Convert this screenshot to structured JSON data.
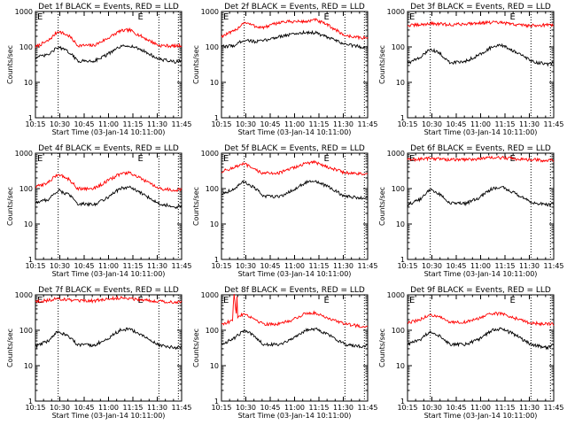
{
  "chart_data": [
    {
      "type": "line",
      "title": "Det 1f BLACK = Events, RED = LLD",
      "xlabel": "Start Time (03-Jan-14 10:11:00)",
      "ylabel": "Counts/sec",
      "x_ticks": [
        "10:15",
        "10:30",
        "10:45",
        "11:00",
        "11:15",
        "11:30",
        "11:45"
      ],
      "y_ticks": [
        "1",
        "10",
        "100",
        "1000"
      ],
      "yscale": "log",
      "ylim": [
        1,
        1000
      ],
      "xlim_min": [
        4,
        94
      ],
      "markers": [
        {
          "label": "E",
          "x_min": 67
        }
      ],
      "series": [
        {
          "color": "#ff0000",
          "x_min": [
            4,
            12,
            18,
            25,
            30,
            40,
            48,
            56,
            62,
            70,
            80,
            90,
            94
          ],
          "values": [
            100,
            150,
            280,
            200,
            110,
            110,
            170,
            280,
            300,
            190,
            110,
            105,
            110
          ]
        },
        {
          "color": "#000000",
          "x_min": [
            4,
            12,
            18,
            25,
            30,
            40,
            48,
            56,
            62,
            70,
            80,
            90,
            94
          ],
          "values": [
            50,
            60,
            100,
            70,
            40,
            40,
            60,
            100,
            110,
            80,
            45,
            38,
            40
          ]
        }
      ]
    },
    {
      "type": "line",
      "title": "Det 2f BLACK = Events, RED = LLD",
      "xlabel": "Start Time (03-Jan-14 10:11:00)",
      "ylabel": "Counts/sec",
      "x_ticks": [
        "10:15",
        "10:30",
        "10:45",
        "11:00",
        "11:15",
        "11:30",
        "11:45"
      ],
      "y_ticks": [
        "1",
        "10",
        "100",
        "1000"
      ],
      "yscale": "log",
      "ylim": [
        1,
        1000
      ],
      "xlim_min": [
        4,
        94
      ],
      "markers": [
        {
          "label": "E",
          "x_min": 67
        }
      ],
      "series": [
        {
          "color": "#ff0000",
          "x_min": [
            4,
            12,
            18,
            25,
            30,
            40,
            48,
            56,
            62,
            70,
            80,
            90,
            94
          ],
          "values": [
            200,
            280,
            500,
            380,
            350,
            500,
            520,
            520,
            580,
            400,
            210,
            180,
            180
          ]
        },
        {
          "color": "#000000",
          "x_min": [
            4,
            12,
            18,
            25,
            30,
            40,
            48,
            56,
            62,
            70,
            80,
            90,
            94
          ],
          "values": [
            100,
            110,
            160,
            140,
            150,
            200,
            230,
            260,
            250,
            180,
            120,
            100,
            100
          ]
        }
      ]
    },
    {
      "type": "line",
      "title": "Det 3f BLACK = Events, RED = LLD",
      "xlabel": "Start Time (03-Jan-14 10:11:00)",
      "ylabel": "Counts/sec",
      "x_ticks": [
        "10:15",
        "10:30",
        "10:45",
        "11:00",
        "11:15",
        "11:30",
        "11:45"
      ],
      "y_ticks": [
        "1",
        "10",
        "100",
        "1000"
      ],
      "yscale": "log",
      "ylim": [
        1,
        1000
      ],
      "xlim_min": [
        4,
        94
      ],
      "markers": [
        {
          "label": "E",
          "x_min": 67
        }
      ],
      "series": [
        {
          "color": "#ff0000",
          "x_min": [
            4,
            12,
            18,
            25,
            30,
            40,
            48,
            56,
            62,
            70,
            80,
            90,
            94
          ],
          "values": [
            400,
            420,
            460,
            440,
            420,
            450,
            480,
            490,
            480,
            430,
            400,
            420,
            410
          ]
        },
        {
          "color": "#000000",
          "x_min": [
            4,
            12,
            18,
            25,
            30,
            40,
            48,
            56,
            62,
            70,
            80,
            90,
            94
          ],
          "values": [
            35,
            50,
            90,
            60,
            35,
            40,
            60,
            100,
            110,
            75,
            40,
            32,
            35
          ]
        }
      ]
    },
    {
      "type": "line",
      "title": "Det 4f BLACK = Events, RED = LLD",
      "xlabel": "Start Time (03-Jan-14 10:11:00)",
      "ylabel": "Counts/sec",
      "x_ticks": [
        "10:15",
        "10:30",
        "10:45",
        "11:00",
        "11:15",
        "11:30",
        "11:45"
      ],
      "y_ticks": [
        "1",
        "10",
        "100",
        "1000"
      ],
      "yscale": "log",
      "ylim": [
        1,
        1000
      ],
      "xlim_min": [
        4,
        94
      ],
      "markers": [
        {
          "label": "E",
          "x_min": 67
        }
      ],
      "series": [
        {
          "color": "#ff0000",
          "x_min": [
            4,
            12,
            18,
            25,
            30,
            40,
            48,
            56,
            62,
            70,
            80,
            90,
            94
          ],
          "values": [
            110,
            150,
            260,
            180,
            100,
            100,
            160,
            260,
            280,
            180,
            100,
            90,
            95
          ]
        },
        {
          "color": "#000000",
          "x_min": [
            4,
            12,
            18,
            25,
            30,
            40,
            48,
            56,
            62,
            70,
            80,
            90,
            94
          ],
          "values": [
            40,
            50,
            90,
            65,
            38,
            35,
            55,
            100,
            110,
            70,
            38,
            30,
            32
          ]
        }
      ]
    },
    {
      "type": "line",
      "title": "Det 5f BLACK = Events, RED = LLD",
      "xlabel": "Start Time (03-Jan-14 10:11:00)",
      "ylabel": "Counts/sec",
      "x_ticks": [
        "10:15",
        "10:30",
        "10:45",
        "11:00",
        "11:15",
        "11:30",
        "11:45"
      ],
      "y_ticks": [
        "1",
        "10",
        "100",
        "1000"
      ],
      "yscale": "log",
      "ylim": [
        1,
        1000
      ],
      "xlim_min": [
        4,
        94
      ],
      "markers": [
        {
          "label": "E",
          "x_min": 67
        }
      ],
      "series": [
        {
          "color": "#ff0000",
          "x_min": [
            4,
            12,
            18,
            25,
            30,
            40,
            48,
            56,
            62,
            70,
            80,
            90,
            94
          ],
          "values": [
            300,
            400,
            500,
            330,
            270,
            280,
            380,
            520,
            550,
            400,
            280,
            260,
            270
          ]
        },
        {
          "color": "#000000",
          "x_min": [
            4,
            12,
            18,
            25,
            30,
            40,
            48,
            56,
            62,
            70,
            80,
            90,
            94
          ],
          "values": [
            70,
            100,
            160,
            100,
            60,
            60,
            90,
            150,
            160,
            110,
            60,
            55,
            55
          ]
        }
      ]
    },
    {
      "type": "line",
      "title": "Det 6f BLACK = Events, RED = LLD",
      "xlabel": "Start Time (03-Jan-14 10:11:00)",
      "ylabel": "Counts/sec",
      "x_ticks": [
        "10:15",
        "10:30",
        "10:45",
        "11:00",
        "11:15",
        "11:30",
        "11:45"
      ],
      "y_ticks": [
        "1",
        "10",
        "100",
        "1000"
      ],
      "yscale": "log",
      "ylim": [
        1,
        1000
      ],
      "xlim_min": [
        4,
        94
      ],
      "markers": [
        {
          "label": "E",
          "x_min": 67
        }
      ],
      "series": [
        {
          "color": "#ff0000",
          "x_min": [
            4,
            12,
            18,
            25,
            30,
            40,
            48,
            56,
            62,
            70,
            80,
            90,
            94
          ],
          "values": [
            650,
            680,
            720,
            680,
            650,
            660,
            700,
            740,
            740,
            700,
            650,
            620,
            620
          ]
        },
        {
          "color": "#000000",
          "x_min": [
            4,
            12,
            18,
            25,
            30,
            40,
            48,
            56,
            62,
            70,
            80,
            90,
            94
          ],
          "values": [
            35,
            50,
            95,
            65,
            38,
            38,
            55,
            100,
            110,
            75,
            40,
            35,
            36
          ]
        }
      ]
    },
    {
      "type": "line",
      "title": "Det 7f BLACK = Events, RED = LLD",
      "xlabel": "Start Time (03-Jan-14 10:11:00)",
      "ylabel": "Counts/sec",
      "x_ticks": [
        "10:15",
        "10:30",
        "10:45",
        "11:00",
        "11:15",
        "11:30",
        "11:45"
      ],
      "y_ticks": [
        "1",
        "10",
        "100",
        "1000"
      ],
      "yscale": "log",
      "ylim": [
        1,
        1000
      ],
      "xlim_min": [
        4,
        94
      ],
      "markers": [
        {
          "label": "E",
          "x_min": 67
        }
      ],
      "series": [
        {
          "color": "#ff0000",
          "x_min": [
            4,
            12,
            18,
            25,
            30,
            40,
            48,
            56,
            62,
            70,
            80,
            90,
            94
          ],
          "values": [
            650,
            700,
            780,
            720,
            660,
            680,
            750,
            820,
            800,
            720,
            660,
            620,
            640
          ]
        },
        {
          "color": "#000000",
          "x_min": [
            4,
            12,
            18,
            25,
            30,
            40,
            48,
            56,
            62,
            70,
            80,
            90,
            94
          ],
          "values": [
            35,
            50,
            95,
            65,
            38,
            38,
            55,
            100,
            110,
            70,
            38,
            32,
            34
          ]
        }
      ]
    },
    {
      "type": "line",
      "title": "Det 8f BLACK = Events, RED = LLD",
      "xlabel": "Start Time (03-Jan-14 10:11:00)",
      "ylabel": "Counts/sec",
      "x_ticks": [
        "10:15",
        "10:30",
        "10:45",
        "11:00",
        "11:15",
        "11:30",
        "11:45"
      ],
      "y_ticks": [
        "1",
        "10",
        "100",
        "1000"
      ],
      "yscale": "log",
      "ylim": [
        1,
        1000
      ],
      "xlim_min": [
        4,
        94
      ],
      "markers": [
        {
          "label": "E",
          "x_min": 67
        }
      ],
      "series": [
        {
          "color": "#ff0000",
          "x_min": [
            4,
            10,
            11,
            11.5,
            12,
            13,
            13.5,
            14,
            18,
            25,
            30,
            40,
            48,
            56,
            62,
            70,
            80,
            90,
            94
          ],
          "values": [
            150,
            180,
            200,
            1000,
            1000,
            220,
            1000,
            240,
            300,
            200,
            150,
            150,
            200,
            300,
            310,
            220,
            150,
            130,
            130
          ]
        },
        {
          "color": "#000000",
          "x_min": [
            4,
            12,
            18,
            25,
            30,
            40,
            48,
            56,
            62,
            70,
            80,
            90,
            94
          ],
          "values": [
            40,
            60,
            100,
            65,
            40,
            40,
            60,
            100,
            110,
            75,
            40,
            35,
            38
          ]
        }
      ]
    },
    {
      "type": "line",
      "title": "Det 9f BLACK = Events, RED = LLD",
      "xlabel": "Start Time (03-Jan-14 10:11:00)",
      "ylabel": "Counts/sec",
      "x_ticks": [
        "10:15",
        "10:30",
        "10:45",
        "11:00",
        "11:15",
        "11:30",
        "11:45"
      ],
      "y_ticks": [
        "1",
        "10",
        "100",
        "1000"
      ],
      "yscale": "log",
      "ylim": [
        1,
        1000
      ],
      "xlim_min": [
        4,
        94
      ],
      "markers": [
        {
          "label": "E",
          "x_min": 67
        }
      ],
      "series": [
        {
          "color": "#ff0000",
          "x_min": [
            4,
            12,
            18,
            25,
            30,
            40,
            48,
            56,
            62,
            70,
            80,
            90,
            94
          ],
          "values": [
            160,
            200,
            280,
            220,
            170,
            170,
            220,
            290,
            300,
            220,
            160,
            150,
            150
          ]
        },
        {
          "color": "#000000",
          "x_min": [
            4,
            12,
            18,
            25,
            30,
            40,
            48,
            56,
            62,
            70,
            80,
            90,
            94
          ],
          "values": [
            40,
            55,
            95,
            65,
            40,
            40,
            55,
            100,
            110,
            75,
            40,
            32,
            38
          ]
        }
      ]
    }
  ]
}
